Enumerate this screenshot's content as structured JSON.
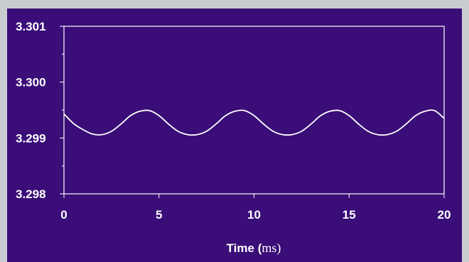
{
  "chart_data": {
    "type": "line",
    "title": "",
    "xlabel": "Time (",
    "xlabel_unit": "ms",
    "xlabel_close": ")",
    "ylabel": "",
    "xlim": [
      0,
      20
    ],
    "ylim": [
      3.298,
      3.301
    ],
    "x_ticks": [
      "0",
      "5",
      "10",
      "15",
      "20"
    ],
    "y_ticks": [
      "3.301",
      "3.300",
      "3.299",
      "3.298"
    ],
    "grid": false,
    "colors": {
      "background": "#3a0d78",
      "page": "#c8ccd0",
      "line": "#ffffff",
      "axes": "#ffffff"
    },
    "series": [
      {
        "x": [
          0,
          0.5,
          1.0,
          1.5,
          2.0,
          2.5,
          3.0,
          3.5,
          4.0,
          4.5,
          5.0,
          5.5,
          6.0,
          6.5,
          7.0,
          7.5,
          8.0,
          8.5,
          9.0,
          9.5,
          10.0,
          10.5,
          11.0,
          11.5,
          12.0,
          12.5,
          13.0,
          13.5,
          14.0,
          14.5,
          15.0,
          15.5,
          16.0,
          16.5,
          17.0,
          17.5,
          18.0,
          18.5,
          19.0,
          19.5,
          20.0
        ],
        "values": [
          3.29943,
          3.29926,
          3.29915,
          3.29907,
          3.29906,
          3.29912,
          3.29925,
          3.2994,
          3.29948,
          3.29949,
          3.2994,
          3.29925,
          3.29912,
          3.29906,
          3.29906,
          3.29912,
          3.29925,
          3.2994,
          3.29948,
          3.29949,
          3.2994,
          3.29925,
          3.29912,
          3.29906,
          3.29906,
          3.29912,
          3.29925,
          3.2994,
          3.29948,
          3.29949,
          3.2994,
          3.29925,
          3.29912,
          3.29906,
          3.29906,
          3.29912,
          3.29925,
          3.2994,
          3.29948,
          3.29949,
          3.29935
        ]
      }
    ]
  }
}
